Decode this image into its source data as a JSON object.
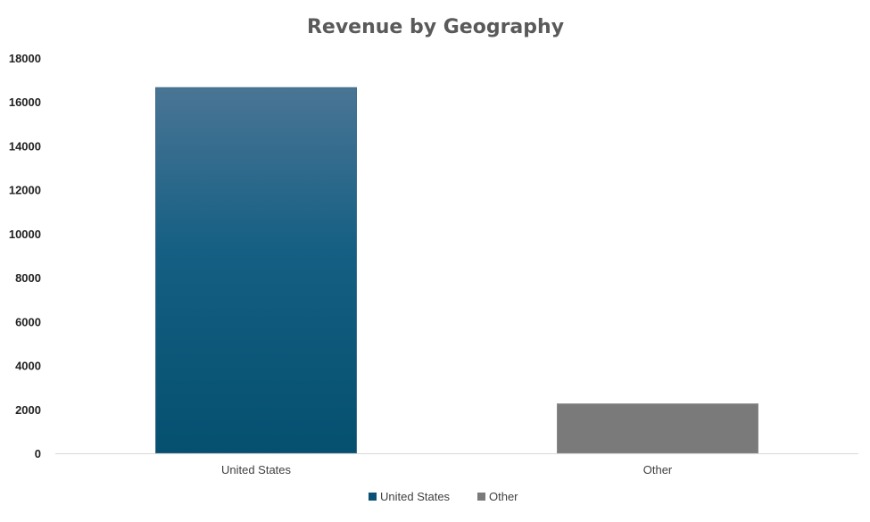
{
  "chart_data": {
    "type": "bar",
    "title": "Revenue by Geography",
    "xlabel": "",
    "ylabel": "",
    "categories": [
      "United States",
      "Other"
    ],
    "values": [
      16650,
      2250
    ],
    "ylim": [
      0,
      18000
    ],
    "yticks": [
      "0",
      "2000",
      "4000",
      "6000",
      "8000",
      "10000",
      "12000",
      "14000",
      "16000",
      "18000"
    ],
    "grid": false,
    "legend": {
      "position": "bottom",
      "entries": [
        "United States",
        "Other"
      ]
    },
    "colors": {
      "United States": "#0b5175",
      "Other": "#7a7a7a",
      "title": "#5a5a5a",
      "axis": "#d9d9d9"
    }
  }
}
